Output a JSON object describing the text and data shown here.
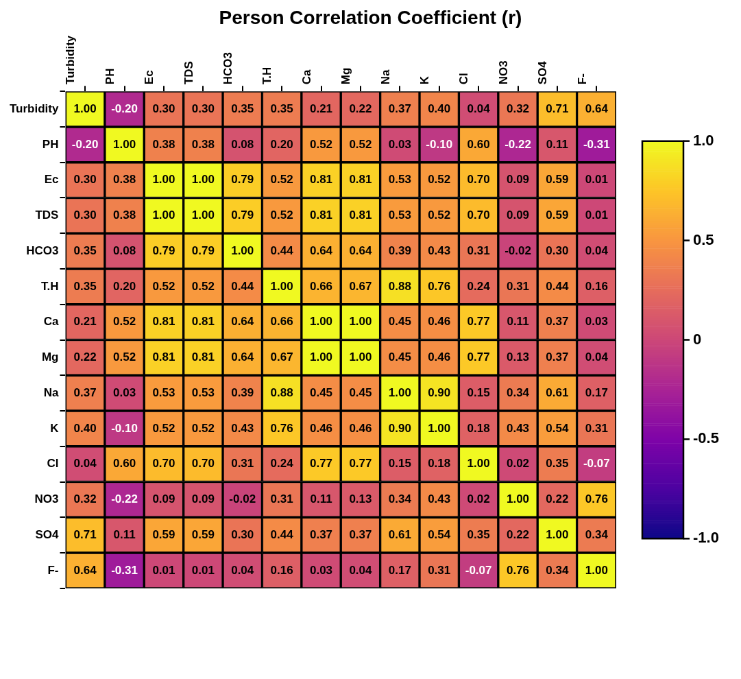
{
  "chart_data": {
    "type": "heatmap",
    "title": "Person Correlation Coefficient (r)",
    "categories": [
      "Turbidity",
      "PH",
      "Ec",
      "TDS",
      "HCO3",
      "T.H",
      "Ca",
      "Mg",
      "Na",
      "K",
      "Cl",
      "NO3",
      "SO4",
      "F-"
    ],
    "y_categories": [
      "Turbidity",
      "PH",
      "Ec",
      "TDS",
      "HCO3",
      "T.H",
      "Ca",
      "Mg",
      "Na",
      "K",
      "Cl",
      "NO3",
      "SO4",
      "F-"
    ],
    "cells": [
      [
        1.0,
        -0.2,
        0.3,
        0.3,
        0.35,
        0.35,
        0.21,
        0.22,
        0.37,
        0.4,
        0.04,
        0.32,
        0.71,
        0.64
      ],
      [
        -0.2,
        1.0,
        0.38,
        0.38,
        0.08,
        0.2,
        0.52,
        0.52,
        0.03,
        -0.1,
        0.6,
        -0.22,
        0.11,
        -0.31
      ],
      [
        0.3,
        0.38,
        1.0,
        1.0,
        0.79,
        0.52,
        0.81,
        0.81,
        0.53,
        0.52,
        0.7,
        0.09,
        0.59,
        0.01
      ],
      [
        0.3,
        0.38,
        1.0,
        1.0,
        0.79,
        0.52,
        0.81,
        0.81,
        0.53,
        0.52,
        0.7,
        0.09,
        0.59,
        0.01
      ],
      [
        0.35,
        0.08,
        0.79,
        0.79,
        1.0,
        0.44,
        0.64,
        0.64,
        0.39,
        0.43,
        0.31,
        -0.02,
        0.3,
        0.04
      ],
      [
        0.35,
        0.2,
        0.52,
        0.52,
        0.44,
        1.0,
        0.66,
        0.67,
        0.88,
        0.76,
        0.24,
        0.31,
        0.44,
        0.16
      ],
      [
        0.21,
        0.52,
        0.81,
        0.81,
        0.64,
        0.66,
        1.0,
        1.0,
        0.45,
        0.46,
        0.77,
        0.11,
        0.37,
        0.03
      ],
      [
        0.22,
        0.52,
        0.81,
        0.81,
        0.64,
        0.67,
        1.0,
        1.0,
        0.45,
        0.46,
        0.77,
        0.13,
        0.37,
        0.04
      ],
      [
        0.37,
        0.03,
        0.53,
        0.53,
        0.39,
        0.88,
        0.45,
        0.45,
        1.0,
        0.9,
        0.15,
        0.34,
        0.61,
        0.17
      ],
      [
        0.4,
        -0.1,
        0.52,
        0.52,
        0.43,
        0.76,
        0.46,
        0.46,
        0.9,
        1.0,
        0.18,
        0.43,
        0.54,
        0.31
      ],
      [
        0.04,
        0.6,
        0.7,
        0.7,
        0.31,
        0.24,
        0.77,
        0.77,
        0.15,
        0.18,
        1.0,
        0.02,
        0.35,
        -0.07
      ],
      [
        0.32,
        -0.22,
        0.09,
        0.09,
        -0.02,
        0.31,
        0.11,
        0.13,
        0.34,
        0.43,
        0.02,
        1.0,
        0.22,
        0.76
      ],
      [
        0.71,
        0.11,
        0.59,
        0.59,
        0.3,
        0.44,
        0.37,
        0.37,
        0.61,
        0.54,
        0.35,
        0.22,
        1.0,
        0.34
      ],
      [
        0.64,
        -0.31,
        0.01,
        0.01,
        0.04,
        0.16,
        0.03,
        0.04,
        0.17,
        0.31,
        -0.07,
        0.76,
        0.34,
        1.0
      ]
    ],
    "cell_labels": [
      [
        "1.00",
        "-0.20",
        "0.30",
        "0.30",
        "0.35",
        "0.35",
        "0.21",
        "0.22",
        "0.37",
        "0.40",
        "0.04",
        "0.32",
        "0.71",
        "0.64"
      ],
      [
        "-0.20",
        "1.00",
        "0.38",
        "0.38",
        "0.08",
        "0.20",
        "0.52",
        "0.52",
        "0.03",
        "-0.10",
        "0.60",
        "-0.22",
        "0.11",
        "-0.31"
      ],
      [
        "0.30",
        "0.38",
        "1.00",
        "1.00",
        "0.79",
        "0.52",
        "0.81",
        "0.81",
        "0.53",
        "0.52",
        "0.70",
        "0.09",
        "0.59",
        "0.01"
      ],
      [
        "0.30",
        "0.38",
        "1.00",
        "1.00",
        "0.79",
        "0.52",
        "0.81",
        "0.81",
        "0.53",
        "0.52",
        "0.70",
        "0.09",
        "0.59",
        "0.01"
      ],
      [
        "0.35",
        "0.08",
        "0.79",
        "0.79",
        "1.00",
        "0.44",
        "0.64",
        "0.64",
        "0.39",
        "0.43",
        "0.31",
        "-0.02",
        "0.30",
        "0.04"
      ],
      [
        "0.35",
        "0.20",
        "0.52",
        "0.52",
        "0.44",
        "1.00",
        "0.66",
        "0.67",
        "0.88",
        "0.76",
        "0.24",
        "0.31",
        "0.44",
        "0.16"
      ],
      [
        "0.21",
        "0.52",
        "0.81",
        "0.81",
        "0.64",
        "0.66",
        "1.00",
        "1.00",
        "0.45",
        "0.46",
        "0.77",
        "0.11",
        "0.37",
        "0.03"
      ],
      [
        "0.22",
        "0.52",
        "0.81",
        "0.81",
        "0.64",
        "0.67",
        "1.00",
        "1.00",
        "0.45",
        "0.46",
        "0.77",
        "0.13",
        "0.37",
        "0.04"
      ],
      [
        "0.37",
        "0.03",
        "0.53",
        "0.53",
        "0.39",
        "0.88",
        "0.45",
        "0.45",
        "1.00",
        "0.90",
        "0.15",
        "0.34",
        "0.61",
        "0.17"
      ],
      [
        "0.40",
        "-0.10",
        "0.52",
        "0.52",
        "0.43",
        "0.76",
        "0.46",
        "0.46",
        "0.90",
        "1.00",
        "0.18",
        "0.43",
        "0.54",
        "0.31"
      ],
      [
        "0.04",
        "0.60",
        "0.70",
        "0.70",
        "0.31",
        "0.24",
        "0.77",
        "0.77",
        "0.15",
        "0.18",
        "1.00",
        "0.02",
        "0.35",
        "-0.07"
      ],
      [
        "0.32",
        "-0.22",
        "0.09",
        "0.09",
        "-0.02",
        "0.31",
        "0.11",
        "0.13",
        "0.34",
        "0.43",
        "0.02",
        "1.00",
        "0.22",
        "0.76"
      ],
      [
        "0.71",
        "0.11",
        "0.59",
        "0.59",
        "0.30",
        "0.44",
        "0.37",
        "0.37",
        "0.61",
        "0.54",
        "0.35",
        "0.22",
        "1.00",
        "0.34"
      ],
      [
        "0.64",
        "-0.31",
        "0.01",
        "0.01",
        "0.04",
        "0.16",
        "0.03",
        "0.04",
        "0.17",
        "0.31",
        "-0.07",
        "0.76",
        "0.34",
        "1.00"
      ]
    ],
    "clim": [
      -1,
      1
    ],
    "cticks": [
      {
        "value": -1,
        "label": "-1.0"
      },
      {
        "value": -0.5,
        "label": "-0.5"
      },
      0,
      {
        "value": 0.5,
        "label": "0.5"
      },
      {
        "value": 1,
        "label": "1.0"
      }
    ]
  }
}
